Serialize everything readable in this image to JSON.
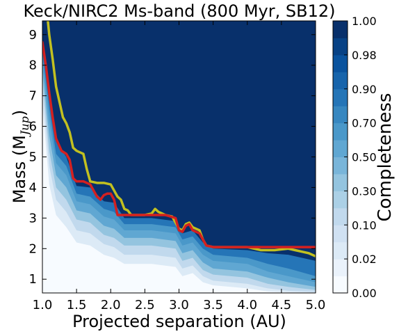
{
  "chart_data": {
    "type": "heatmap",
    "title": "Keck/NIRC2 Ms-band (800 Myr, SB12)",
    "xlabel": "Projected separation (AU)",
    "ylabel_main": "Mass (M",
    "ylabel_sub": "Jup",
    "ylabel_close": ")",
    "xlim": [
      1.0,
      5.0
    ],
    "ylim": [
      0.55,
      9.45
    ],
    "xticks": [
      "1.0",
      "1.5",
      "2.0",
      "2.5",
      "3.0",
      "3.5",
      "4.0",
      "4.5",
      "5.0"
    ],
    "yticks": [
      "1",
      "2",
      "3",
      "4",
      "5",
      "6",
      "7",
      "8",
      "9"
    ],
    "grid": false,
    "colorbar": {
      "label": "Completeness",
      "range": [
        0.0,
        1.0
      ],
      "tick_labels": [
        "0.00",
        "0.02",
        "0.10",
        "0.30",
        "0.50",
        "0.70",
        "0.90",
        "0.98",
        "1.00"
      ]
    },
    "contour_levels": [
      0.0,
      0.01,
      0.02,
      0.05,
      0.1,
      0.2,
      0.3,
      0.4,
      0.5,
      0.6,
      0.7,
      0.8,
      0.9,
      0.95,
      0.98,
      0.99,
      1.0
    ],
    "color_ramp": [
      "#f7fbff",
      "#deebf7",
      "#c6dbef",
      "#9ecae1",
      "#6baed6",
      "#4292c6",
      "#2171b5",
      "#08519c",
      "#08306b"
    ],
    "series": [
      {
        "level": 0.95,
        "color": "#d42020",
        "x": [
          1.0,
          1.05,
          1.1,
          1.15,
          1.2,
          1.28,
          1.35,
          1.4,
          1.45,
          1.5,
          1.6,
          1.7,
          1.75,
          1.8,
          1.85,
          1.9,
          1.95,
          2.0,
          2.05,
          2.1,
          2.2,
          2.4,
          2.6,
          2.8,
          2.95,
          3.0,
          3.05,
          3.1,
          3.15,
          3.2,
          3.3,
          3.35,
          3.4,
          3.5,
          3.6,
          3.8,
          4.0,
          4.2,
          4.4,
          4.6,
          4.8,
          5.0
        ],
        "y": [
          8.75,
          8.0,
          7.1,
          6.3,
          5.6,
          5.2,
          5.1,
          4.9,
          4.3,
          4.2,
          4.2,
          4.1,
          3.9,
          3.7,
          3.6,
          3.75,
          3.8,
          3.8,
          3.6,
          3.1,
          3.1,
          3.1,
          3.1,
          3.1,
          3.0,
          2.6,
          2.55,
          2.75,
          2.8,
          2.6,
          2.5,
          2.3,
          2.1,
          2.05,
          2.05,
          2.05,
          2.05,
          2.05,
          2.05,
          2.05,
          2.05,
          2.05
        ]
      },
      {
        "level": 0.99,
        "color": "#c2c020",
        "x": [
          1.08,
          1.1,
          1.15,
          1.2,
          1.25,
          1.3,
          1.35,
          1.4,
          1.45,
          1.5,
          1.55,
          1.6,
          1.65,
          1.7,
          1.8,
          1.9,
          2.0,
          2.05,
          2.1,
          2.15,
          2.2,
          2.25,
          2.3,
          2.4,
          2.5,
          2.6,
          2.65,
          2.7,
          2.75,
          2.8,
          2.9,
          2.95,
          3.0,
          3.05,
          3.1,
          3.15,
          3.2,
          3.3,
          3.35,
          3.4,
          3.5,
          3.7,
          3.9,
          4.0,
          4.1,
          4.2,
          4.4,
          4.6,
          4.7,
          4.8,
          4.9,
          5.0
        ],
        "y": [
          9.45,
          9.0,
          8.2,
          7.3,
          6.8,
          6.3,
          6.1,
          5.8,
          5.3,
          5.2,
          5.15,
          5.1,
          4.6,
          4.2,
          4.15,
          4.15,
          4.1,
          3.9,
          3.7,
          3.6,
          3.3,
          3.25,
          3.1,
          3.1,
          3.1,
          3.15,
          3.3,
          3.2,
          3.15,
          3.1,
          3.05,
          2.85,
          2.65,
          2.6,
          2.8,
          2.85,
          2.7,
          2.6,
          2.3,
          2.1,
          2.05,
          2.05,
          2.05,
          2.05,
          2.0,
          1.95,
          1.95,
          2.0,
          1.95,
          1.9,
          1.85,
          1.75
        ]
      }
    ],
    "iso_contours": [
      {
        "level": 0.98,
        "x": [
          1.0,
          1.1,
          1.2,
          1.35,
          1.5,
          1.7,
          1.9,
          2.05,
          2.2,
          2.6,
          2.95,
          3.05,
          3.2,
          3.35,
          3.5,
          4.0,
          4.3,
          4.6,
          5.0
        ],
        "y": [
          8.6,
          7.0,
          5.5,
          5.0,
          4.05,
          4.0,
          3.55,
          3.5,
          3.0,
          3.0,
          2.9,
          2.5,
          2.6,
          2.2,
          2.0,
          1.95,
          1.85,
          1.8,
          1.6
        ]
      },
      {
        "level": 0.9,
        "x": [
          1.0,
          1.1,
          1.2,
          1.35,
          1.5,
          1.7,
          1.9,
          2.05,
          2.2,
          2.6,
          2.95,
          3.05,
          3.2,
          3.35,
          3.5,
          4.0,
          4.3,
          4.6,
          5.0
        ],
        "y": [
          8.4,
          6.6,
          5.1,
          4.7,
          3.8,
          3.7,
          3.3,
          3.2,
          2.8,
          2.8,
          2.7,
          2.3,
          2.4,
          2.0,
          1.8,
          1.7,
          1.5,
          1.35,
          1.1
        ]
      },
      {
        "level": 0.8,
        "x": [
          1.0,
          1.1,
          1.2,
          1.35,
          1.5,
          1.7,
          1.9,
          2.05,
          2.2,
          2.6,
          2.95,
          3.05,
          3.2,
          3.35,
          3.5,
          4.0,
          4.3,
          4.6,
          5.0
        ],
        "y": [
          8.2,
          6.2,
          4.8,
          4.4,
          3.55,
          3.45,
          3.05,
          2.95,
          2.6,
          2.6,
          2.5,
          2.1,
          2.2,
          1.8,
          1.6,
          1.5,
          1.25,
          1.1,
          0.9
        ]
      },
      {
        "level": 0.6,
        "x": [
          1.0,
          1.1,
          1.2,
          1.35,
          1.5,
          1.7,
          1.9,
          2.05,
          2.2,
          2.6,
          2.95,
          3.05,
          3.2,
          3.35,
          3.5,
          4.0,
          4.3,
          4.6,
          5.0
        ],
        "y": [
          7.9,
          5.7,
          4.4,
          4.0,
          3.25,
          3.15,
          2.75,
          2.65,
          2.35,
          2.35,
          2.25,
          1.85,
          1.95,
          1.55,
          1.35,
          1.25,
          1.05,
          0.9,
          0.75
        ]
      },
      {
        "level": 0.4,
        "x": [
          1.0,
          1.1,
          1.2,
          1.35,
          1.5,
          1.7,
          1.9,
          2.05,
          2.2,
          2.6,
          2.95,
          3.05,
          3.2,
          3.35,
          3.5,
          4.0,
          4.3,
          4.6,
          5.0
        ],
        "y": [
          7.6,
          5.2,
          4.0,
          3.6,
          2.95,
          2.85,
          2.45,
          2.35,
          2.1,
          2.1,
          2.0,
          1.6,
          1.7,
          1.3,
          1.15,
          1.05,
          0.85,
          0.75,
          0.65
        ]
      },
      {
        "level": 0.2,
        "x": [
          1.0,
          1.1,
          1.2,
          1.35,
          1.5,
          1.7,
          1.9,
          2.05,
          2.2,
          2.6,
          2.95,
          3.05,
          3.2,
          3.35,
          3.5,
          4.0,
          4.3,
          4.6,
          5.0
        ],
        "y": [
          7.2,
          4.7,
          3.6,
          3.2,
          2.6,
          2.5,
          2.15,
          2.05,
          1.8,
          1.8,
          1.7,
          1.35,
          1.45,
          1.1,
          0.95,
          0.85,
          0.7,
          0.62,
          0.58
        ]
      },
      {
        "level": 0.05,
        "x": [
          1.0,
          1.1,
          1.2,
          1.35,
          1.5,
          1.7,
          1.9,
          2.05,
          2.2,
          2.6,
          2.95,
          3.05,
          3.2,
          3.35,
          3.5,
          4.0,
          4.3,
          4.6,
          5.0
        ],
        "y": [
          6.7,
          4.1,
          3.1,
          2.7,
          2.2,
          2.1,
          1.8,
          1.7,
          1.5,
          1.5,
          1.4,
          1.1,
          1.2,
          0.9,
          0.8,
          0.7,
          0.6,
          0.57,
          0.56
        ]
      },
      {
        "level": 0.02,
        "x": [
          1.0,
          1.1,
          1.2,
          1.35,
          1.5,
          1.7,
          1.9,
          2.05,
          2.2,
          2.6,
          2.95,
          3.05,
          3.2,
          3.35,
          3.5,
          4.0,
          4.3,
          4.6,
          5.0
        ],
        "y": [
          6.3,
          3.7,
          2.8,
          2.4,
          1.9,
          1.8,
          1.55,
          1.45,
          1.3,
          1.3,
          1.2,
          0.95,
          1.0,
          0.78,
          0.68,
          0.6,
          0.56,
          0.55,
          0.55
        ]
      }
    ]
  }
}
